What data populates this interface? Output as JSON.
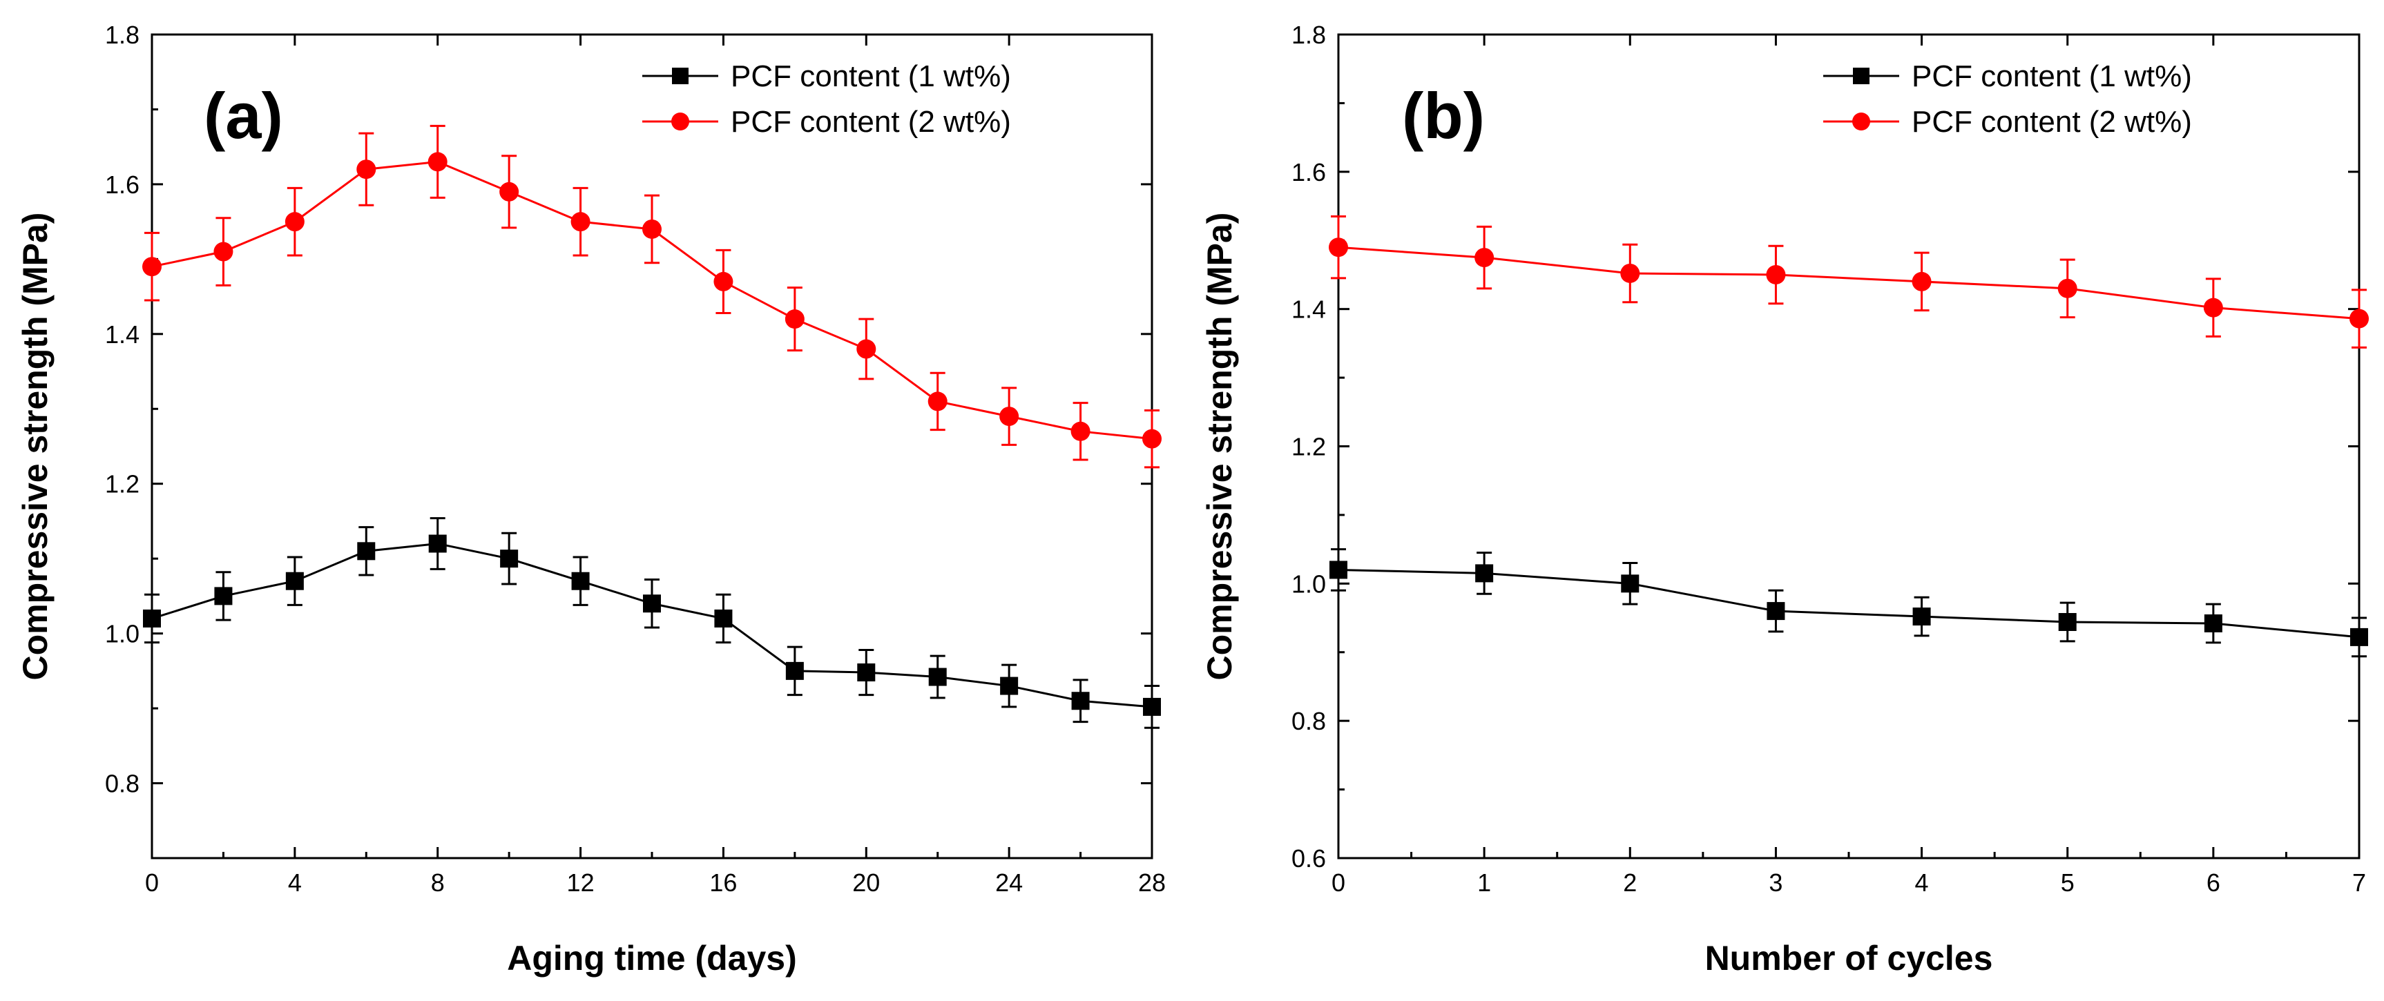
{
  "chart_data": [
    {
      "type": "line",
      "panel_label": "(a)",
      "xlabel": "Aging time (days)",
      "ylabel": "Compressive strength (MPa)",
      "xlim": [
        0,
        28
      ],
      "ylim": [
        0.7,
        1.8
      ],
      "xticks": [
        0,
        4,
        8,
        12,
        16,
        20,
        24,
        28
      ],
      "yticks": [
        0.8,
        1.0,
        1.2,
        1.4,
        1.6,
        1.8
      ],
      "ytick_labels": [
        "0.8",
        "1.0",
        "1.2",
        "1.4",
        "1.6",
        "1.8"
      ],
      "x": [
        0,
        2,
        4,
        6,
        8,
        10,
        12,
        14,
        16,
        18,
        20,
        22,
        24,
        26,
        28
      ],
      "legend_position": "top-right",
      "series": [
        {
          "name": "PCF content (1 wt%)",
          "color": "#000000",
          "marker": "square",
          "values": [
            1.02,
            1.05,
            1.07,
            1.11,
            1.12,
            1.1,
            1.07,
            1.04,
            1.02,
            0.95,
            0.948,
            0.942,
            0.93,
            0.91,
            0.902
          ],
          "errors": [
            0.032,
            0.032,
            0.032,
            0.032,
            0.034,
            0.034,
            0.032,
            0.032,
            0.032,
            0.032,
            0.03,
            0.028,
            0.028,
            0.028,
            0.028
          ]
        },
        {
          "name": "PCF content (2 wt%)",
          "color": "#ff0000",
          "marker": "circle",
          "values": [
            1.49,
            1.51,
            1.55,
            1.62,
            1.63,
            1.59,
            1.55,
            1.54,
            1.47,
            1.42,
            1.38,
            1.31,
            1.29,
            1.27,
            1.26
          ],
          "errors": [
            0.045,
            0.045,
            0.045,
            0.048,
            0.048,
            0.048,
            0.045,
            0.045,
            0.042,
            0.042,
            0.04,
            0.038,
            0.038,
            0.038,
            0.038
          ]
        }
      ]
    },
    {
      "type": "line",
      "panel_label": "(b)",
      "xlabel": "Number of cycles",
      "ylabel": "Compressive strength (MPa)",
      "xlim": [
        0,
        7
      ],
      "ylim": [
        0.6,
        1.8
      ],
      "xticks": [
        0,
        1,
        2,
        3,
        4,
        5,
        6,
        7
      ],
      "yticks": [
        0.6,
        0.8,
        1.0,
        1.2,
        1.4,
        1.6,
        1.8
      ],
      "ytick_labels": [
        "0.6",
        "0.8",
        "1.0",
        "1.2",
        "1.4",
        "1.6",
        "1.8"
      ],
      "x": [
        0,
        1,
        2,
        3,
        4,
        5,
        6,
        7
      ],
      "legend_position": "top-right",
      "series": [
        {
          "name": "PCF content (1 wt%)",
          "color": "#000000",
          "marker": "square",
          "values": [
            1.02,
            1.015,
            1.0,
            0.96,
            0.952,
            0.944,
            0.942,
            0.922
          ],
          "errors": [
            0.03,
            0.03,
            0.03,
            0.03,
            0.028,
            0.028,
            0.028,
            0.028
          ]
        },
        {
          "name": "PCF content (2 wt%)",
          "color": "#ff0000",
          "marker": "circle",
          "values": [
            1.49,
            1.475,
            1.452,
            1.45,
            1.44,
            1.43,
            1.402,
            1.386
          ],
          "errors": [
            0.045,
            0.045,
            0.042,
            0.042,
            0.042,
            0.042,
            0.042,
            0.042
          ]
        }
      ]
    }
  ]
}
